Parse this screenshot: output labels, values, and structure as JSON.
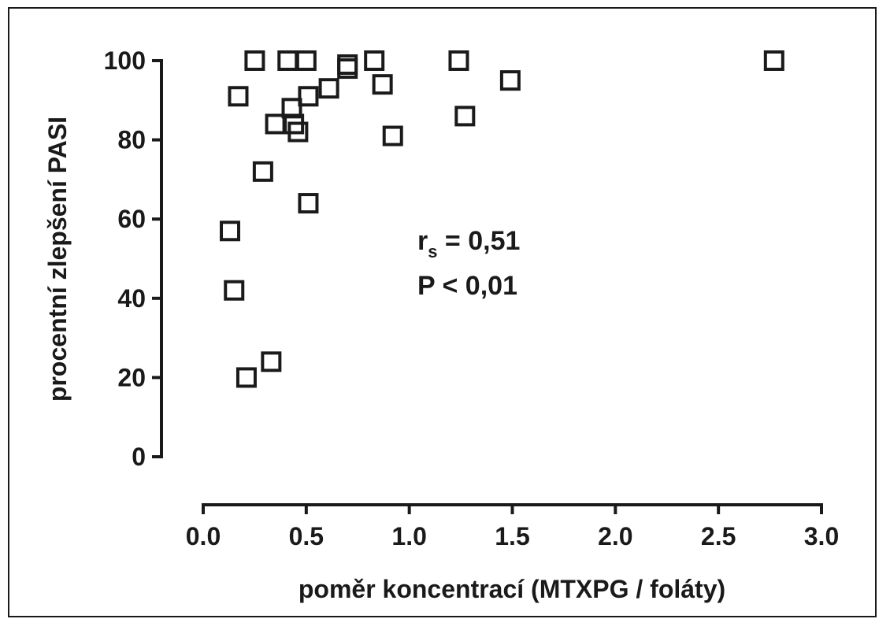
{
  "chart_data": {
    "type": "scatter",
    "title": "",
    "xlabel": "poměr koncentrací (MTXPG / foláty)",
    "ylabel": "procentní zlepšení PASI",
    "xlim": [
      0.0,
      3.0
    ],
    "ylim": [
      0,
      100
    ],
    "xticks": [
      "0.0",
      "0.5",
      "1.0",
      "1.5",
      "2.0",
      "2.5",
      "3.0"
    ],
    "yticks": [
      "0",
      "20",
      "40",
      "60",
      "80",
      "100"
    ],
    "grid": false,
    "marker": "open-square",
    "annotations": {
      "rs_prefix": "r",
      "rs_sub": "s",
      "rs_value": " = 0,51",
      "p_value": "P < 0,01"
    },
    "points": [
      {
        "x": 0.25,
        "y": 100
      },
      {
        "x": 0.41,
        "y": 100
      },
      {
        "x": 0.5,
        "y": 100
      },
      {
        "x": 0.7,
        "y": 99
      },
      {
        "x": 0.7,
        "y": 98
      },
      {
        "x": 0.83,
        "y": 100
      },
      {
        "x": 1.24,
        "y": 100
      },
      {
        "x": 2.77,
        "y": 100
      },
      {
        "x": 0.87,
        "y": 94
      },
      {
        "x": 1.49,
        "y": 95
      },
      {
        "x": 0.61,
        "y": 93
      },
      {
        "x": 0.17,
        "y": 91
      },
      {
        "x": 0.51,
        "y": 91
      },
      {
        "x": 0.43,
        "y": 88
      },
      {
        "x": 1.27,
        "y": 86
      },
      {
        "x": 0.35,
        "y": 84
      },
      {
        "x": 0.44,
        "y": 84
      },
      {
        "x": 0.46,
        "y": 82
      },
      {
        "x": 0.92,
        "y": 81
      },
      {
        "x": 0.29,
        "y": 72
      },
      {
        "x": 0.51,
        "y": 64
      },
      {
        "x": 0.13,
        "y": 57
      },
      {
        "x": 0.15,
        "y": 42
      },
      {
        "x": 0.33,
        "y": 24
      },
      {
        "x": 0.21,
        "y": 20
      }
    ]
  }
}
